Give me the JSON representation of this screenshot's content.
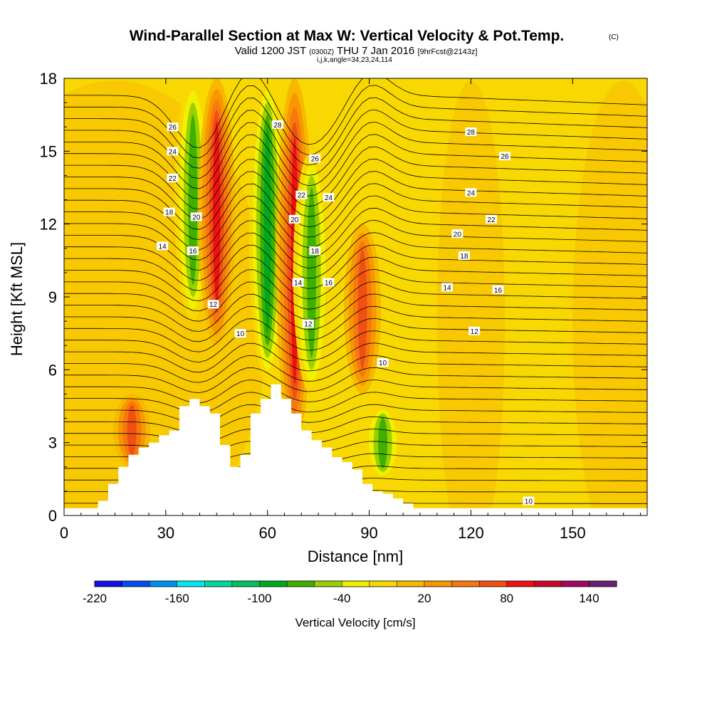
{
  "title": "Wind-Parallel Section at Max W: Vertical Velocity & Pot.Temp.",
  "title_unit": "(C)",
  "subtitle_prefix": "Valid 1200 JST",
  "subtitle_utc": "(0300Z)",
  "subtitle_date": "THU 7 Jan 2016",
  "subtitle_fcst": "[9hrFcst@2143z]",
  "subtitle_indices": "i,j,k,angle=34,23,24,114",
  "chart_data": {
    "type": "heatmap",
    "xlabel": "Distance [nm]",
    "ylabel": "Height [Kft MSL]",
    "xlim": [
      0,
      172
    ],
    "ylim": [
      0,
      18
    ],
    "x_ticks": [
      0,
      30,
      60,
      90,
      120,
      150
    ],
    "y_ticks": [
      0,
      3,
      6,
      9,
      12,
      15,
      18
    ],
    "x_tick_labels": [
      "0",
      "30",
      "60",
      "90",
      "120",
      "150"
    ],
    "y_tick_labels": [
      "0",
      "3",
      "6",
      "9",
      "12",
      "15",
      "18"
    ],
    "colorbar": {
      "title": "Vertical Velocity [cm/s]",
      "min": -220,
      "step": 20,
      "labels": [
        "-220",
        "-160",
        "-100",
        "-40",
        "20",
        "80",
        "140"
      ],
      "label_values": [
        -220,
        -160,
        -100,
        -40,
        20,
        80,
        140
      ],
      "colors": [
        "#1010e8",
        "#0050f0",
        "#0090f0",
        "#00e8f0",
        "#00d8a0",
        "#00c060",
        "#00a820",
        "#40b000",
        "#98d000",
        "#f0f000",
        "#f8d800",
        "#f8b800",
        "#f89800",
        "#f87810",
        "#f05010",
        "#f01010",
        "#c80828",
        "#a00860",
        "#682078"
      ]
    },
    "terrain_profile": {
      "x": [
        0,
        10,
        10,
        13,
        13,
        16,
        16,
        19,
        19,
        22,
        22,
        25,
        25,
        28,
        28,
        31,
        31,
        34,
        34,
        37,
        37,
        40,
        40,
        43,
        43,
        46,
        46,
        49,
        49,
        52,
        52,
        55,
        55,
        58,
        58,
        61,
        61,
        64,
        64,
        67,
        67,
        70,
        70,
        73,
        73,
        76,
        76,
        79,
        79,
        82,
        82,
        85,
        85,
        88,
        88,
        91,
        91,
        94,
        94,
        97,
        97,
        100,
        100,
        103,
        103,
        106,
        106,
        172
      ],
      "y": [
        0.3,
        0.3,
        0.6,
        0.6,
        1.3,
        1.3,
        2.0,
        2.0,
        2.5,
        2.5,
        2.8,
        2.8,
        3.0,
        3.0,
        3.3,
        3.3,
        3.5,
        3.5,
        4.5,
        4.5,
        4.8,
        4.8,
        4.5,
        4.5,
        4.2,
        4.2,
        2.9,
        2.9,
        2.0,
        2.0,
        2.5,
        2.5,
        4.2,
        4.2,
        4.8,
        4.8,
        5.4,
        5.4,
        4.8,
        4.8,
        4.2,
        4.2,
        3.5,
        3.5,
        3.1,
        3.1,
        2.8,
        2.8,
        2.4,
        2.4,
        2.2,
        2.2,
        1.9,
        1.9,
        1.3,
        1.3,
        1.0,
        1.0,
        0.9,
        0.9,
        0.7,
        0.7,
        0.5,
        0.5,
        0.3,
        0.3,
        0.3,
        0.3
      ]
    },
    "vertical_velocity_features": [
      {
        "x": 38,
        "y_from": 8.0,
        "y_to": 18.0,
        "value": -60
      },
      {
        "x": 45,
        "y_from": 7.0,
        "y_to": 18.0,
        "value": 80
      },
      {
        "x": 60,
        "y_from": 5.5,
        "y_to": 18.0,
        "value": -80
      },
      {
        "x": 68,
        "y_from": 3.0,
        "y_to": 18.0,
        "value": 80
      },
      {
        "x": 73,
        "y_from": 5.0,
        "y_to": 15.0,
        "value": -60
      },
      {
        "x": 88,
        "y_from": 5.0,
        "y_to": 12.0,
        "value": 60
      },
      {
        "x": 94,
        "y_from": 1.5,
        "y_to": 4.5,
        "value": -60
      },
      {
        "x": 20,
        "y_from": 2.0,
        "y_to": 5.0,
        "value": 60
      }
    ],
    "potential_temperature_labels": [
      {
        "label": "28",
        "x": 63,
        "y": 16.1
      },
      {
        "label": "28",
        "x": 120,
        "y": 15.8
      },
      {
        "label": "26",
        "x": 32,
        "y": 16.0
      },
      {
        "label": "26",
        "x": 74,
        "y": 14.7
      },
      {
        "label": "26",
        "x": 130,
        "y": 14.8
      },
      {
        "label": "24",
        "x": 32,
        "y": 15.0
      },
      {
        "label": "24",
        "x": 78,
        "y": 13.1
      },
      {
        "label": "24",
        "x": 120,
        "y": 13.3
      },
      {
        "label": "22",
        "x": 32,
        "y": 13.9
      },
      {
        "label": "22",
        "x": 70,
        "y": 13.2
      },
      {
        "label": "22",
        "x": 126,
        "y": 12.2
      },
      {
        "label": "20",
        "x": 39,
        "y": 12.3
      },
      {
        "label": "20",
        "x": 68,
        "y": 12.2
      },
      {
        "label": "20",
        "x": 116,
        "y": 11.6
      },
      {
        "label": "18",
        "x": 31,
        "y": 12.5
      },
      {
        "label": "18",
        "x": 74,
        "y": 10.9
      },
      {
        "label": "18",
        "x": 118,
        "y": 10.7
      },
      {
        "label": "16",
        "x": 38,
        "y": 10.9
      },
      {
        "label": "16",
        "x": 78,
        "y": 9.6
      },
      {
        "label": "16",
        "x": 128,
        "y": 9.3
      },
      {
        "label": "14",
        "x": 29,
        "y": 11.1
      },
      {
        "label": "14",
        "x": 69,
        "y": 9.6
      },
      {
        "label": "14",
        "x": 113,
        "y": 9.4
      },
      {
        "label": "12",
        "x": 44,
        "y": 8.7
      },
      {
        "label": "12",
        "x": 72,
        "y": 7.9
      },
      {
        "label": "12",
        "x": 121,
        "y": 7.6
      },
      {
        "label": "10",
        "x": 52,
        "y": 7.5
      },
      {
        "label": "10",
        "x": 94,
        "y": 6.3
      },
      {
        "label": "10",
        "x": 137,
        "y": 0.6
      }
    ]
  }
}
